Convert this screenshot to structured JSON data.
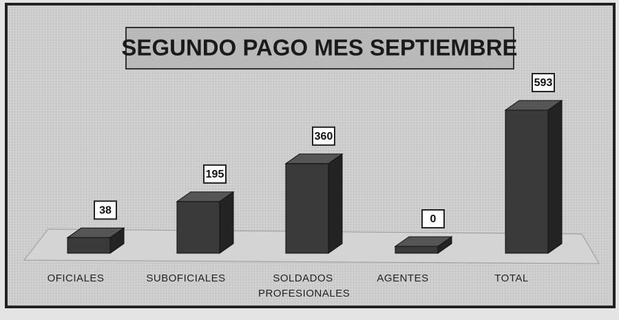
{
  "chart_data": {
    "type": "bar",
    "title": "SEGUNDO PAGO MES SEPTIEMBRE",
    "categories": [
      "OFICIALES",
      "SUBOFICIALES",
      "SOLDADOS PROFESIONALES",
      "AGENTES",
      "TOTAL"
    ],
    "values": [
      38,
      195,
      360,
      0,
      593
    ],
    "color": "#3a3a3a"
  }
}
